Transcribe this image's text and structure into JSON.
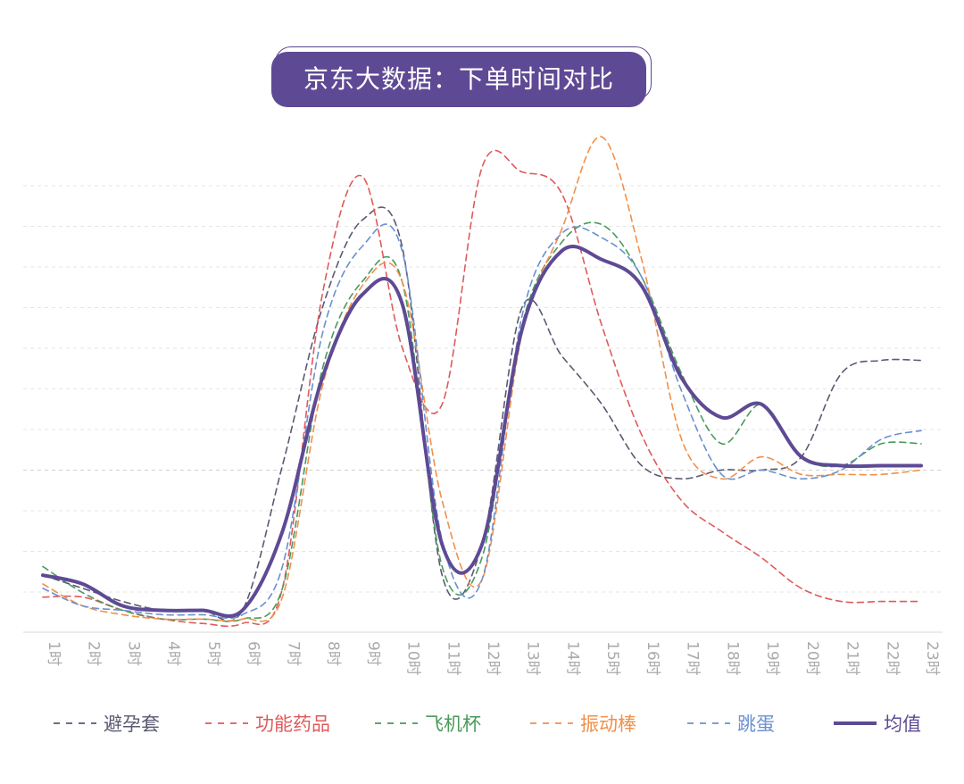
{
  "title": "京东大数据：下单时间对比",
  "chart_data": {
    "type": "line",
    "title": "京东大数据：下单时间对比",
    "x": [
      "1时",
      "2时",
      "3时",
      "4时",
      "5时",
      "6时",
      "7时",
      "8时",
      "9时",
      "10时",
      "11时",
      "12时",
      "13时",
      "14时",
      "15时",
      "16时",
      "17时",
      "18时",
      "19时",
      "20时",
      "21时",
      "22时",
      "23时"
    ],
    "xlabel": "",
    "ylabel": "",
    "ylim": [
      0,
      110
    ],
    "grid": true,
    "legend_position": "bottom",
    "series": [
      {
        "name": "避孕套",
        "color": "#5a5a72",
        "dash": true,
        "width": 1.6,
        "values": [
          13,
          10,
          7,
          5,
          5,
          5,
          38,
          74,
          94,
          88,
          13,
          20,
          74,
          63,
          52,
          38,
          35,
          37,
          37,
          40,
          59,
          62,
          62
        ]
      },
      {
        "name": "功能药品",
        "color": "#e05a5a",
        "dash": true,
        "width": 1.6,
        "values": [
          8,
          8,
          5,
          3,
          2,
          2,
          10,
          77,
          104,
          65,
          52,
          106,
          105,
          100,
          70,
          45,
          30,
          23,
          17,
          10,
          7,
          7,
          7
        ]
      },
      {
        "name": "飞机杯",
        "color": "#4a9a5c",
        "dash": true,
        "width": 1.6,
        "values": [
          15,
          9,
          5,
          3,
          3,
          3,
          10,
          60,
          80,
          80,
          15,
          17,
          70,
          89,
          93,
          81,
          59,
          43,
          52,
          40,
          38,
          43,
          43
        ]
      },
      {
        "name": "振动棒",
        "color": "#f0904a",
        "dash": true,
        "width": 1.6,
        "values": [
          11,
          6,
          4,
          3,
          3,
          3,
          8,
          56,
          79,
          80,
          30,
          12,
          68,
          92,
          113,
          85,
          44,
          35,
          40,
          36,
          36,
          36,
          37
        ]
      },
      {
        "name": "跳蛋",
        "color": "#6a90d0",
        "dash": true,
        "width": 1.6,
        "values": [
          10,
          6,
          5,
          4,
          4,
          4,
          15,
          68,
          88,
          87,
          21,
          12,
          72,
          91,
          90,
          81,
          55,
          36,
          37,
          35,
          37,
          44,
          46
        ]
      },
      {
        "name": "均值",
        "color": "#5e4a94",
        "dash": false,
        "width": 4,
        "values": [
          13,
          11,
          6,
          5,
          5,
          5,
          23,
          58,
          77,
          75,
          20,
          20,
          69,
          87,
          85,
          79,
          58,
          49,
          52,
          40,
          38,
          38,
          38
        ]
      }
    ]
  }
}
